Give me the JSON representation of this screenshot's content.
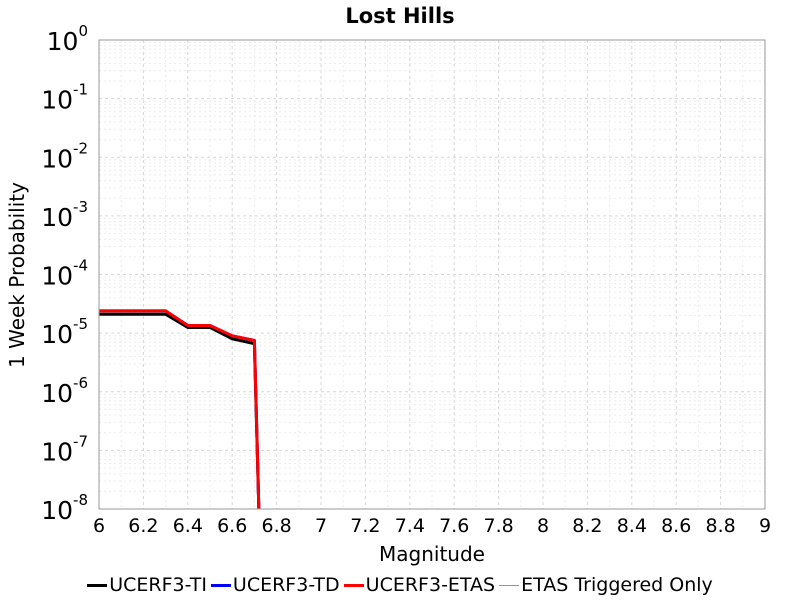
{
  "chart_data": {
    "type": "line",
    "title": "Lost Hills",
    "xlabel": "Magnitude",
    "ylabel": "1 Week Probability",
    "xlim": [
      6,
      9
    ],
    "ylim": [
      1e-08,
      1
    ],
    "yscale": "log",
    "grid": true,
    "legend_position": "bottom",
    "x_ticks": [
      "6",
      "6.2",
      "6.4",
      "6.6",
      "6.8",
      "7",
      "7.2",
      "7.4",
      "7.6",
      "7.8",
      "8",
      "8.2",
      "8.4",
      "8.6",
      "8.8",
      "9"
    ],
    "y_ticks": [
      {
        "base": "10",
        "exp": "0"
      },
      {
        "base": "10",
        "exp": "-1"
      },
      {
        "base": "10",
        "exp": "-2"
      },
      {
        "base": "10",
        "exp": "-3"
      },
      {
        "base": "10",
        "exp": "-4"
      },
      {
        "base": "10",
        "exp": "-5"
      },
      {
        "base": "10",
        "exp": "-6"
      },
      {
        "base": "10",
        "exp": "-7"
      },
      {
        "base": "10",
        "exp": "-8"
      }
    ],
    "series": [
      {
        "name": "UCERF3-TI",
        "color": "#000000",
        "width": 3,
        "x": [
          6.0,
          6.1,
          6.2,
          6.3,
          6.4,
          6.5,
          6.6,
          6.7,
          6.72
        ],
        "y": [
          2.1e-05,
          2.1e-05,
          2.1e-05,
          2.1e-05,
          1.25e-05,
          1.25e-05,
          8e-06,
          6.6e-06,
          1e-08
        ]
      },
      {
        "name": "UCERF3-TD",
        "color": "#0000ff",
        "width": 3,
        "x": [
          6.0,
          6.1,
          6.2,
          6.3,
          6.4,
          6.5,
          6.6,
          6.7,
          6.72
        ],
        "y": [
          2.4e-05,
          2.4e-05,
          2.4e-05,
          2.4e-05,
          1.35e-05,
          1.35e-05,
          9e-06,
          7.5e-06,
          1e-08
        ]
      },
      {
        "name": "UCERF3-ETAS",
        "color": "#ff0000",
        "width": 3,
        "x": [
          6.0,
          6.1,
          6.2,
          6.3,
          6.4,
          6.5,
          6.6,
          6.7,
          6.72
        ],
        "y": [
          2.4e-05,
          2.4e-05,
          2.4e-05,
          2.4e-05,
          1.35e-05,
          1.35e-05,
          9e-06,
          7.5e-06,
          1e-08
        ]
      },
      {
        "name": "ETAS Triggered Only",
        "color": "#ff6666",
        "width": 1,
        "x": [],
        "y": []
      }
    ]
  }
}
